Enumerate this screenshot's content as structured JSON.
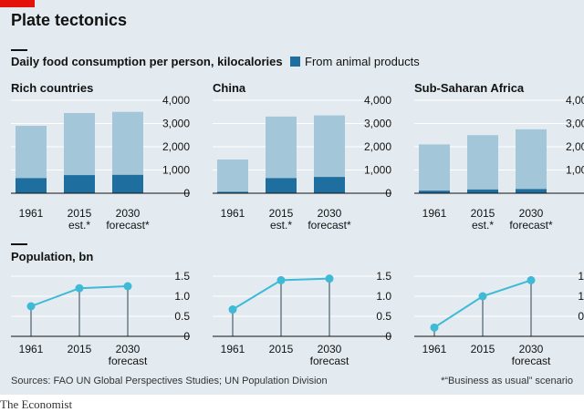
{
  "title": "Plate tectonics",
  "accent": "#e3120b",
  "colors": {
    "total": "#a4c6d9",
    "animal": "#1e6ea0",
    "population": "#3eb9d6",
    "stem": "#6b7c86",
    "background": "#e3ebf0"
  },
  "food_section": {
    "title": "Daily food consumption per person, kilocalories",
    "legend_label": "From animal products"
  },
  "population_section": {
    "title": "Population, bn"
  },
  "source": "Sources: FAO UN Global Perspectives Studies; UN Population Division",
  "footnote": "*“Business as usual” scenario",
  "brand": "The Economist",
  "chart_data": [
    {
      "type": "bar",
      "panel": "Rich countries",
      "categories": [
        [
          "1961"
        ],
        [
          "2015",
          "est.*"
        ],
        [
          "2030",
          "forecast*"
        ]
      ],
      "series": [
        {
          "name": "Total",
          "values": [
            2900,
            3450,
            3500
          ]
        },
        {
          "name": "From animal products",
          "values": [
            650,
            780,
            790
          ]
        }
      ],
      "ylim": [
        0,
        4000
      ],
      "yticks": [
        "4,000",
        "3,000",
        "2,000",
        "1,000",
        "0"
      ],
      "ytick_values": [
        4000,
        3000,
        2000,
        1000,
        0
      ]
    },
    {
      "type": "bar",
      "panel": "China",
      "categories": [
        [
          "1961"
        ],
        [
          "2015",
          "est.*"
        ],
        [
          "2030",
          "forecast*"
        ]
      ],
      "series": [
        {
          "name": "Total",
          "values": [
            1450,
            3300,
            3350
          ]
        },
        {
          "name": "From animal products",
          "values": [
            60,
            650,
            700
          ]
        }
      ],
      "ylim": [
        0,
        4000
      ],
      "yticks": [
        "4,000",
        "3,000",
        "2,000",
        "1,000",
        "0"
      ],
      "ytick_values": [
        4000,
        3000,
        2000,
        1000,
        0
      ]
    },
    {
      "type": "bar",
      "panel": "Sub-Saharan Africa",
      "categories": [
        [
          "1961"
        ],
        [
          "2015",
          "est.*"
        ],
        [
          "2030",
          "forecast*"
        ]
      ],
      "series": [
        {
          "name": "Total",
          "values": [
            2100,
            2500,
            2750
          ]
        },
        {
          "name": "From animal products",
          "values": [
            110,
            160,
            180
          ]
        }
      ],
      "ylim": [
        0,
        4000
      ],
      "yticks": [
        "4,000",
        "3,000",
        "2,000",
        "1,000",
        "0"
      ],
      "ytick_values": [
        4000,
        3000,
        2000,
        1000,
        0
      ]
    },
    {
      "type": "line",
      "panel": "Rich countries",
      "categories": [
        [
          "1961"
        ],
        [
          "2015"
        ],
        [
          "2030",
          "forecast"
        ]
      ],
      "values": [
        0.75,
        1.2,
        1.25
      ],
      "ylim": [
        0,
        1.5
      ],
      "yticks": [
        "1.5",
        "1.0",
        "0.5",
        "0"
      ],
      "ytick_values": [
        1.5,
        1.0,
        0.5,
        0
      ]
    },
    {
      "type": "line",
      "panel": "China",
      "categories": [
        [
          "1961"
        ],
        [
          "2015"
        ],
        [
          "2030",
          "forecast"
        ]
      ],
      "values": [
        0.67,
        1.4,
        1.44
      ],
      "ylim": [
        0,
        1.5
      ],
      "yticks": [
        "1.5",
        "1.0",
        "0.5",
        "0"
      ],
      "ytick_values": [
        1.5,
        1.0,
        0.5,
        0
      ]
    },
    {
      "type": "line",
      "panel": "Sub-Saharan Africa",
      "categories": [
        [
          "1961"
        ],
        [
          "2015"
        ],
        [
          "2030",
          "forecast"
        ]
      ],
      "values": [
        0.22,
        1.0,
        1.4
      ],
      "ylim": [
        0,
        1.5
      ],
      "yticks": [
        "1.5",
        "1.0",
        "0.5",
        "0"
      ],
      "ytick_values": [
        1.5,
        1.0,
        0.5,
        0
      ]
    }
  ]
}
